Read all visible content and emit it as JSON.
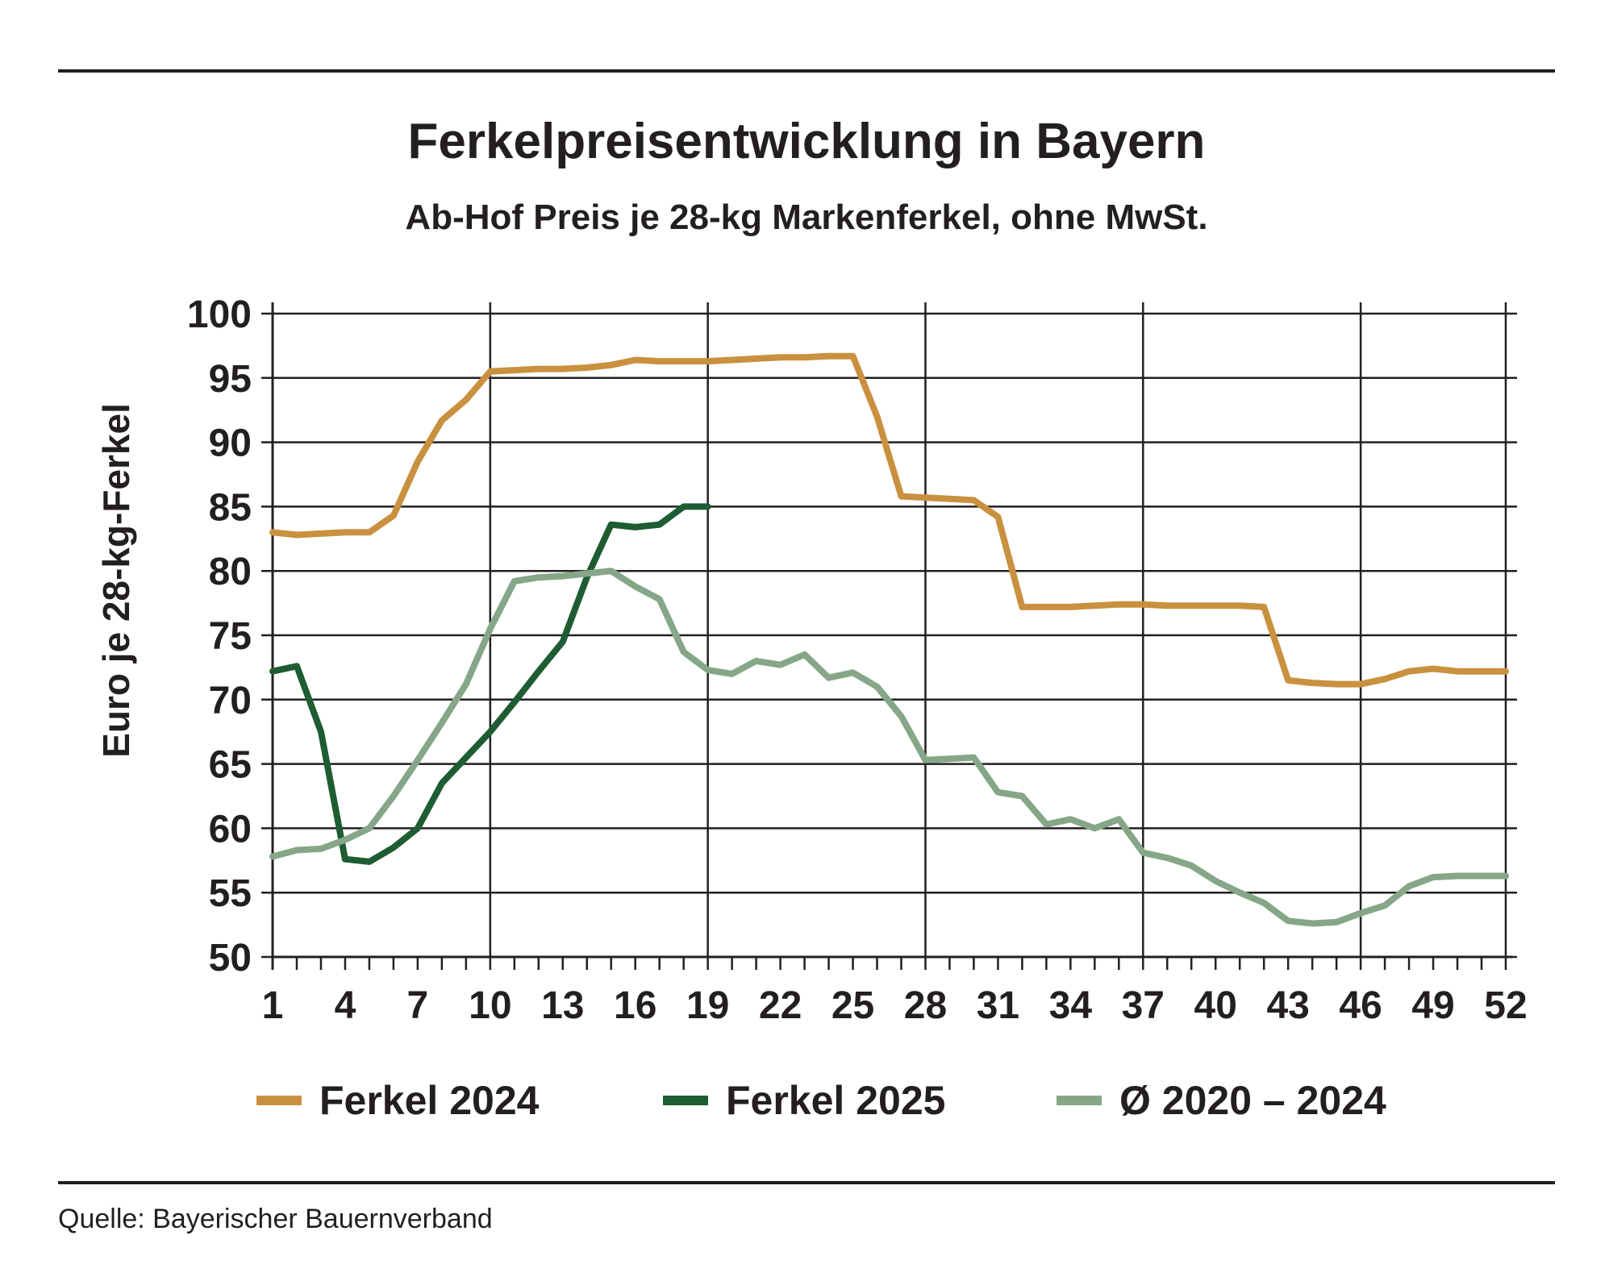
{
  "title": "Ferkelpreisentwicklung in Bayern",
  "subtitle": "Ab-Hof Preis je 28-kg Markenferkel, ohne MwSt.",
  "source": "Quelle: Bayerischer Bauernverband",
  "chart_data": {
    "type": "line",
    "title": "Ferkelpreisentwicklung in Bayern",
    "subtitle": "Ab-Hof Preis je 28-kg Markenferkel, ohne MwSt.",
    "xlabel": "",
    "ylabel": "Euro je 28-kg-Ferkel",
    "xlim": [
      1,
      52
    ],
    "ylim": [
      50,
      100
    ],
    "x_ticks": [
      1,
      4,
      7,
      10,
      13,
      16,
      19,
      22,
      25,
      28,
      31,
      34,
      37,
      40,
      43,
      46,
      49,
      52
    ],
    "y_ticks": [
      50,
      55,
      60,
      65,
      70,
      75,
      80,
      85,
      90,
      95,
      100
    ],
    "grid": true,
    "legend_position": "bottom",
    "series": [
      {
        "name": "Ferkel 2024",
        "color": "#c9913f",
        "x": [
          1,
          2,
          3,
          4,
          5,
          6,
          7,
          8,
          9,
          10,
          11,
          12,
          13,
          14,
          15,
          16,
          17,
          18,
          19,
          20,
          21,
          22,
          23,
          24,
          25,
          26,
          27,
          28,
          29,
          30,
          31,
          32,
          33,
          34,
          35,
          36,
          37,
          38,
          39,
          40,
          41,
          42,
          43,
          44,
          45,
          46,
          47,
          48,
          49,
          50,
          51,
          52
        ],
        "values": [
          83,
          82.8,
          82.9,
          83,
          83,
          84.3,
          88.5,
          91.7,
          93.3,
          95.5,
          95.6,
          95.7,
          95.7,
          95.8,
          96,
          96.4,
          96.3,
          96.3,
          96.3,
          96.4,
          96.5,
          96.6,
          96.6,
          96.7,
          96.7,
          92,
          85.8,
          85.7,
          85.6,
          85.5,
          84.2,
          77.2,
          77.2,
          77.2,
          77.3,
          77.4,
          77.4,
          77.3,
          77.3,
          77.3,
          77.3,
          77.2,
          71.5,
          71.3,
          71.2,
          71.2,
          71.6,
          72.2,
          72.4,
          72.2,
          72.2,
          72.2
        ]
      },
      {
        "name": "Ferkel 2025",
        "color": "#1e5c32",
        "x": [
          1,
          2,
          3,
          4,
          5,
          6,
          7,
          8,
          9,
          10,
          11,
          12,
          13,
          14,
          15,
          16,
          17,
          18,
          19
        ],
        "values": [
          72.2,
          72.6,
          67.5,
          57.6,
          57.4,
          58.5,
          60,
          63.5,
          65.5,
          67.5,
          69.8,
          72.2,
          74.5,
          79.5,
          83.6,
          83.4,
          83.6,
          85,
          85
        ]
      },
      {
        "name": "Ø 2020 – 2024",
        "color": "#86a688",
        "x": [
          1,
          2,
          3,
          4,
          5,
          6,
          7,
          8,
          9,
          10,
          11,
          12,
          13,
          14,
          15,
          16,
          17,
          18,
          19,
          20,
          21,
          22,
          23,
          24,
          25,
          26,
          27,
          28,
          29,
          30,
          31,
          32,
          33,
          34,
          35,
          36,
          37,
          38,
          39,
          40,
          41,
          42,
          43,
          44,
          45,
          46,
          47,
          48,
          49,
          50,
          51,
          52
        ],
        "values": [
          57.8,
          58.3,
          58.4,
          59.1,
          60,
          62.5,
          65.3,
          68.2,
          71.2,
          75.5,
          79.2,
          79.5,
          79.6,
          79.8,
          80,
          78.8,
          77.8,
          73.7,
          72.3,
          72,
          73,
          72.7,
          73.5,
          71.7,
          72.1,
          71,
          68.7,
          65.3,
          65.4,
          65.5,
          62.8,
          62.5,
          60.3,
          60.7,
          60,
          60.7,
          58.1,
          57.7,
          57.1,
          55.9,
          55,
          54.2,
          52.8,
          52.6,
          52.7,
          53.4,
          54,
          55.5,
          56.2,
          56.3,
          56.3,
          56.3
        ]
      }
    ]
  }
}
